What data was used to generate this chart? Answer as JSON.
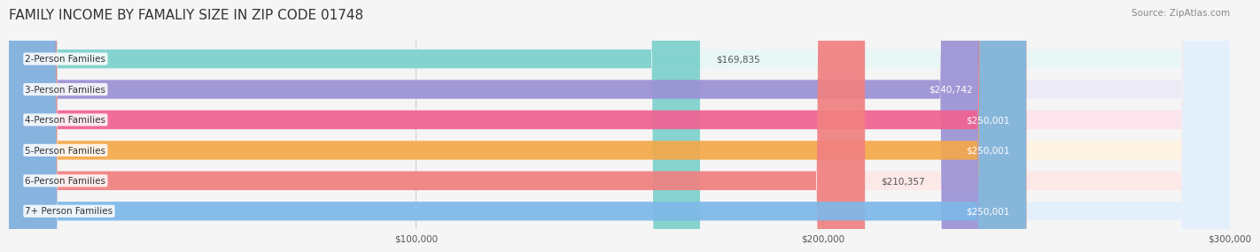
{
  "title": "FAMILY INCOME BY FAMALIY SIZE IN ZIP CODE 01748",
  "source": "Source: ZipAtlas.com",
  "categories": [
    "2-Person Families",
    "3-Person Families",
    "4-Person Families",
    "5-Person Families",
    "6-Person Families",
    "7+ Person Families"
  ],
  "values": [
    169835,
    240742,
    250001,
    250001,
    210357,
    250001
  ],
  "labels": [
    "$169,835",
    "$240,742",
    "$250,001",
    "$250,001",
    "$210,357",
    "$250,001"
  ],
  "bar_colors": [
    "#7dd0cc",
    "#9b92d4",
    "#f06292",
    "#f4a84a",
    "#f08080",
    "#7eb8e8"
  ],
  "bar_bg_colors": [
    "#e8f7f6",
    "#edeaf8",
    "#fce4ec",
    "#fef3e2",
    "#fde8e8",
    "#e3f0fc"
  ],
  "xmax": 300000,
  "xticks": [
    100000,
    200000,
    300000
  ],
  "xticklabels": [
    "$100,000",
    "$200,000",
    "$300,000"
  ],
  "background_color": "#f5f5f5",
  "title_fontsize": 11,
  "label_fontsize": 7.5,
  "bar_label_fontsize": 7.5,
  "source_fontsize": 7.5
}
